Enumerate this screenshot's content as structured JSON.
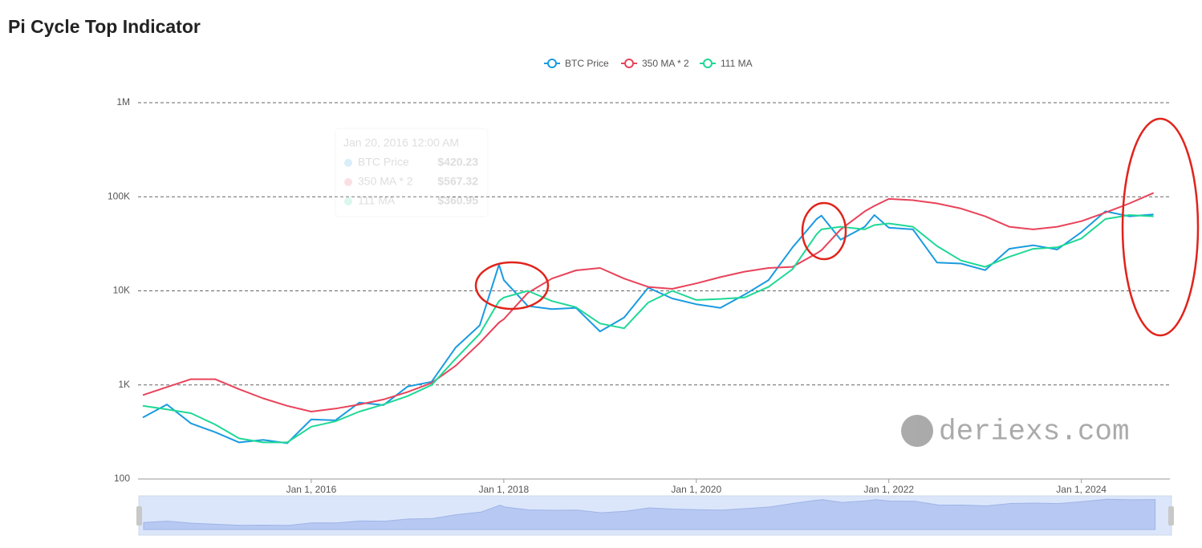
{
  "chart_data": {
    "type": "line",
    "title": "Pi Cycle Top Indicator",
    "log_scale": true,
    "grid": true,
    "legend": "top",
    "x": [
      2014.25,
      2014.5,
      2014.75,
      2015.0,
      2015.25,
      2015.5,
      2015.75,
      2016.0,
      2016.25,
      2016.5,
      2016.75,
      2017.0,
      2017.25,
      2017.5,
      2017.75,
      2017.95,
      2018.0,
      2018.25,
      2018.5,
      2018.75,
      2019.0,
      2019.25,
      2019.5,
      2019.75,
      2020.0,
      2020.25,
      2020.5,
      2020.75,
      2021.0,
      2021.25,
      2021.3,
      2021.5,
      2021.75,
      2021.85,
      2022.0,
      2022.25,
      2022.5,
      2022.75,
      2023.0,
      2023.25,
      2023.5,
      2023.75,
      2024.0,
      2024.25,
      2024.5,
      2024.75
    ],
    "series": [
      {
        "name": "BTC Price",
        "color": "#1a9be0",
        "values": [
          450,
          620,
          390,
          315,
          245,
          260,
          240,
          430,
          420,
          650,
          610,
          960,
          1080,
          2500,
          4300,
          19000,
          13000,
          6900,
          6400,
          6600,
          3700,
          5200,
          10800,
          8300,
          7200,
          6600,
          9100,
          13000,
          29000,
          58000,
          63000,
          35000,
          48000,
          64000,
          47000,
          45000,
          20000,
          19500,
          16600,
          28000,
          30500,
          27500,
          42000,
          70000,
          62000,
          65000
        ]
      },
      {
        "name": "350 MA * 2",
        "color": "#e8435a",
        "values": [
          780,
          950,
          1150,
          1150,
          900,
          720,
          600,
          520,
          560,
          620,
          700,
          840,
          1050,
          1600,
          2800,
          4600,
          5000,
          9500,
          13500,
          16500,
          17500,
          13500,
          11000,
          10500,
          12000,
          14000,
          16000,
          17500,
          18000,
          25000,
          27000,
          45000,
          70000,
          80000,
          95000,
          92000,
          85000,
          75000,
          62000,
          48000,
          45000,
          48000,
          55000,
          68000,
          85000,
          110000
        ]
      },
      {
        "name": "111 MA",
        "color": "#1fd896",
        "values": [
          600,
          550,
          500,
          380,
          270,
          245,
          245,
          360,
          410,
          520,
          620,
          760,
          1000,
          1900,
          3500,
          7800,
          8500,
          10000,
          7800,
          6700,
          4500,
          4000,
          7500,
          10000,
          8000,
          8200,
          8500,
          11000,
          17000,
          40000,
          45000,
          48000,
          45000,
          50000,
          52000,
          48000,
          30000,
          21000,
          18000,
          23000,
          28000,
          29000,
          36000,
          58000,
          64000,
          62000
        ]
      }
    ],
    "xlim": [
      2014.2,
      2024.92
    ],
    "xticks": [
      {
        "value": 2016,
        "label": "Jan 1, 2016"
      },
      {
        "value": 2018,
        "label": "Jan 1, 2018"
      },
      {
        "value": 2020,
        "label": "Jan 1, 2020"
      },
      {
        "value": 2022,
        "label": "Jan 1, 2022"
      },
      {
        "value": 2024,
        "label": "Jan 1, 2024"
      }
    ],
    "ylim": [
      100,
      1000000
    ],
    "yticks": [
      100,
      {
        "value": 1000,
        "label": "1K"
      },
      {
        "value": 10000,
        "label": "10K"
      },
      {
        "value": 100000,
        "label": "100K"
      },
      {
        "value": 1000000,
        "label": "1M"
      }
    ],
    "tooltip": {
      "date": "Jan 20, 2016 12:00 AM",
      "rows": [
        {
          "name": "BTC Price",
          "value": "$420.23"
        },
        {
          "name": "350 MA * 2",
          "value": "$567.32"
        },
        {
          "name": "111 MA",
          "value": "$360.95"
        }
      ]
    },
    "watermark": "deriexs.com"
  }
}
